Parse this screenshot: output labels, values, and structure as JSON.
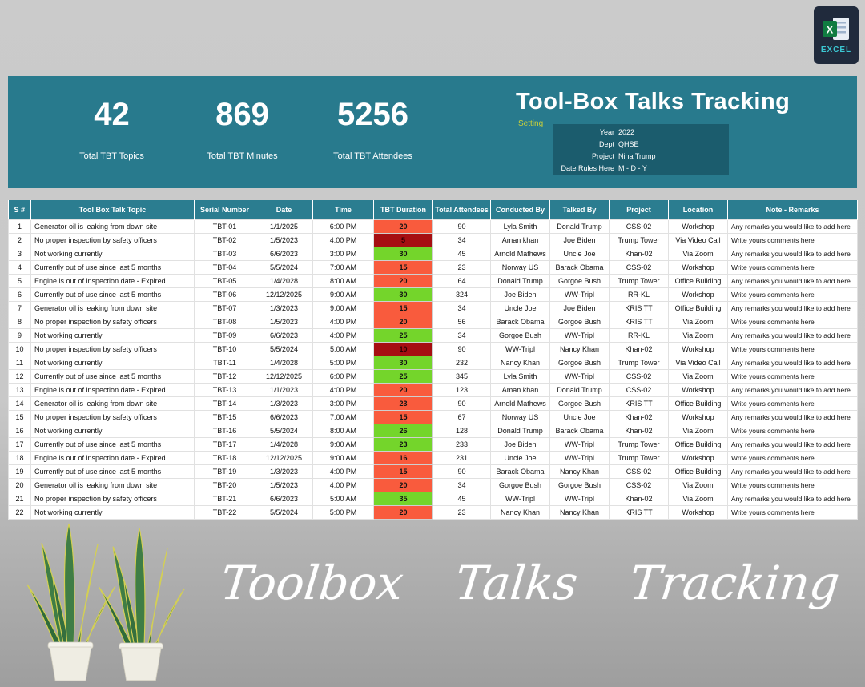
{
  "logo": {
    "label": "EXCEL"
  },
  "header": {
    "title": "Tool-Box Talks Tracking",
    "setting_label": "Setting",
    "stats": [
      {
        "value": "42",
        "label": "Total TBT Topics"
      },
      {
        "value": "869",
        "label": "Total TBT Minutes"
      },
      {
        "value": "5256",
        "label": "Total TBT Attendees"
      }
    ],
    "settings": [
      {
        "label": "Year",
        "value": "2022"
      },
      {
        "label": "Dept",
        "value": "QHSE"
      },
      {
        "label": "Project",
        "value": "Nina Trump"
      },
      {
        "label": "Date Rules Here",
        "value": "M - D - Y"
      }
    ]
  },
  "table": {
    "columns": [
      "S #",
      "Tool Box Talk Topic",
      "Serial Number",
      "Date",
      "Time",
      "TBT Duration",
      "Total Attendees",
      "Conducted By",
      "Talked By",
      "Project",
      "Location",
      "Note - Remarks"
    ],
    "duration_colors": {
      "orange": "#F95B3D",
      "green": "#74D52B",
      "darkred": "#A60F12"
    },
    "rows": [
      [
        1,
        "Generator oil is leaking from down site",
        "TBT-01",
        "1/1/2025",
        "6:00 PM",
        20,
        "orange",
        90,
        "Lyla Smith",
        "Donald Trump",
        "CSS-02",
        "Workshop",
        "Any remarks you would like to add here"
      ],
      [
        2,
        "No proper inspection by safety officers",
        "TBT-02",
        "1/5/2023",
        "4:00 PM",
        5,
        "darkred",
        34,
        "Aman khan",
        "Joe Biden",
        "Trump Tower",
        "Via Video Call",
        "Write yours comments here"
      ],
      [
        3,
        "Not working currently",
        "TBT-03",
        "6/6/2023",
        "3:00 PM",
        30,
        "green",
        45,
        "Arnold Mathews",
        "Uncle Joe",
        "Khan-02",
        "Via Zoom",
        "Any remarks you would like to add here"
      ],
      [
        4,
        "Currently out of use since last 5 months",
        "TBT-04",
        "5/5/2024",
        "7:00 AM",
        15,
        "orange",
        23,
        "Norway US",
        "Barack Obama",
        "CSS-02",
        "Workshop",
        "Write yours comments here"
      ],
      [
        5,
        "Engine is out of inspection date - Expired",
        "TBT-05",
        "1/4/2028",
        "8:00 AM",
        20,
        "orange",
        64,
        "Donald Trump",
        "Gorgoe Bush",
        "Trump Tower",
        "Office Building",
        "Any remarks you would like to add here"
      ],
      [
        6,
        "Currently out of use since last 5 months",
        "TBT-06",
        "12/12/2025",
        "9:00 AM",
        30,
        "green",
        324,
        "Joe Biden",
        "WW-Tripl",
        "RR-KL",
        "Workshop",
        "Write yours comments here"
      ],
      [
        7,
        "Generator oil is leaking from down site",
        "TBT-07",
        "1/3/2023",
        "9:00 AM",
        15,
        "orange",
        34,
        "Uncle Joe",
        "Joe Biden",
        "KRIS TT",
        "Office Building",
        "Any remarks you would like to add here"
      ],
      [
        8,
        "No proper inspection by safety officers",
        "TBT-08",
        "1/5/2023",
        "4:00 PM",
        20,
        "orange",
        56,
        "Barack Obama",
        "Gorgoe Bush",
        "KRIS TT",
        "Via Zoom",
        "Write yours comments here"
      ],
      [
        9,
        "Not working currently",
        "TBT-09",
        "6/6/2023",
        "4:00 PM",
        25,
        "green",
        34,
        "Gorgoe Bush",
        "WW-Tripl",
        "RR-KL",
        "Via Zoom",
        "Any remarks you would like to add here"
      ],
      [
        10,
        "No proper inspection by safety officers",
        "TBT-10",
        "5/5/2024",
        "5:00 AM",
        10,
        "darkred",
        90,
        "WW-Tripl",
        "Nancy Khan",
        "Khan-02",
        "Workshop",
        "Write yours comments here"
      ],
      [
        11,
        "Not working currently",
        "TBT-11",
        "1/4/2028",
        "5:00 PM",
        30,
        "green",
        232,
        "Nancy Khan",
        "Gorgoe Bush",
        "Trump Tower",
        "Via Video Call",
        "Any remarks you would like to add here"
      ],
      [
        12,
        "Currently out of use since last 5 months",
        "TBT-12",
        "12/12/2025",
        "6:00 PM",
        25,
        "green",
        345,
        "Lyla Smith",
        "WW-Tripl",
        "CSS-02",
        "Via Zoom",
        "Write yours comments here"
      ],
      [
        13,
        "Engine is out of inspection date - Expired",
        "TBT-13",
        "1/1/2023",
        "4:00 PM",
        20,
        "orange",
        123,
        "Aman khan",
        "Donald Trump",
        "CSS-02",
        "Workshop",
        "Any remarks you would like to add here"
      ],
      [
        14,
        "Generator oil is leaking from down site",
        "TBT-14",
        "1/3/2023",
        "3:00 PM",
        23,
        "orange",
        90,
        "Arnold Mathews",
        "Gorgoe Bush",
        "KRIS TT",
        "Office Building",
        "Write yours comments here"
      ],
      [
        15,
        "No proper inspection by safety officers",
        "TBT-15",
        "6/6/2023",
        "7:00 AM",
        15,
        "orange",
        67,
        "Norway US",
        "Uncle Joe",
        "Khan-02",
        "Workshop",
        "Any remarks you would like to add here"
      ],
      [
        16,
        "Not working currently",
        "TBT-16",
        "5/5/2024",
        "8:00 AM",
        26,
        "green",
        128,
        "Donald Trump",
        "Barack Obama",
        "Khan-02",
        "Via Zoom",
        "Write yours comments here"
      ],
      [
        17,
        "Currently out of use since last 5 months",
        "TBT-17",
        "1/4/2028",
        "9:00 AM",
        23,
        "green",
        233,
        "Joe Biden",
        "WW-Tripl",
        "Trump Tower",
        "Office Building",
        "Any remarks you would like to add here"
      ],
      [
        18,
        "Engine is out of inspection date - Expired",
        "TBT-18",
        "12/12/2025",
        "9:00 AM",
        16,
        "orange",
        231,
        "Uncle Joe",
        "WW-Tripl",
        "Trump Tower",
        "Workshop",
        "Write yours comments here"
      ],
      [
        19,
        "Currently out of use since last 5 months",
        "TBT-19",
        "1/3/2023",
        "4:00 PM",
        15,
        "orange",
        90,
        "Barack Obama",
        "Nancy Khan",
        "CSS-02",
        "Office Building",
        "Any remarks you would like to add here"
      ],
      [
        20,
        "Generator oil is leaking from down site",
        "TBT-20",
        "1/5/2023",
        "4:00 PM",
        20,
        "orange",
        34,
        "Gorgoe Bush",
        "Gorgoe Bush",
        "CSS-02",
        "Via Zoom",
        "Write yours comments here"
      ],
      [
        21,
        "No proper inspection by safety officers",
        "TBT-21",
        "6/6/2023",
        "5:00 AM",
        35,
        "green",
        45,
        "WW-Tripl",
        "WW-Tripl",
        "Khan-02",
        "Via Zoom",
        "Any remarks you would like to add here"
      ],
      [
        22,
        "Not working currently",
        "TBT-22",
        "5/5/2024",
        "5:00 PM",
        20,
        "orange",
        23,
        "Nancy Khan",
        "Nancy Khan",
        "KRIS TT",
        "Workshop",
        "Write yours comments here"
      ]
    ]
  },
  "watermark": {
    "words": [
      "Toolbox",
      "Talks",
      "Tracking"
    ]
  },
  "colors": {
    "banner": "#287A8D",
    "table_header": "#2B7D90",
    "accent_yellow": "#C9CF3A"
  }
}
